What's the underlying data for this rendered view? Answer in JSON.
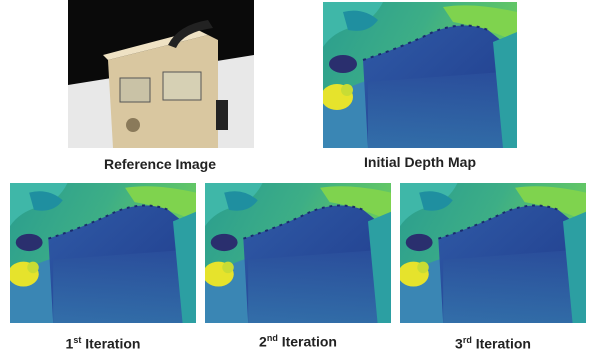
{
  "panels": [
    {
      "label": "Reference Image"
    },
    {
      "label": "Initial Depth Map"
    },
    {
      "number": "1",
      "suffix": "st",
      "label": "Iteration"
    },
    {
      "number": "2",
      "suffix": "nd",
      "label": "Iteration"
    },
    {
      "number": "3",
      "suffix": "rd",
      "label": "Iteration"
    }
  ]
}
